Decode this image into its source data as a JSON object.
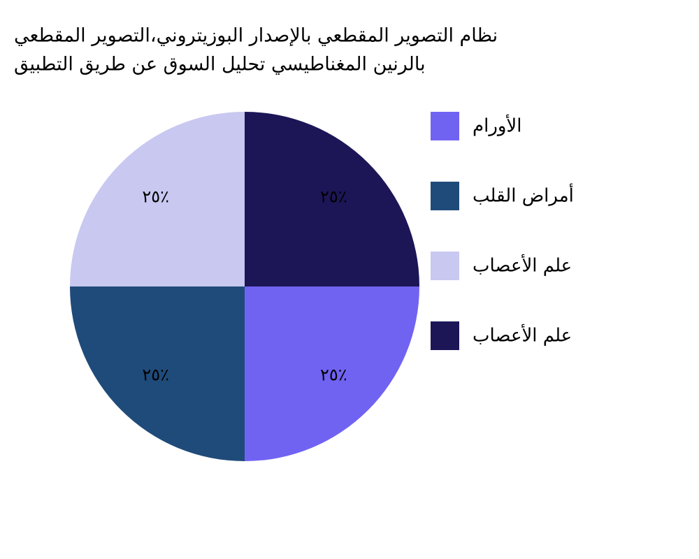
{
  "chart_data": {
    "type": "pie",
    "title_lines": [
      "نظام التصوير المقطعي بالإصدار البوزيتروني،التصوير المقطعي",
      "بالرنين المغناطيسي تحليل السوق عن طريق التطبيق"
    ],
    "categories": [
      "الأورام",
      "أمراض القلب",
      "علم الأعصاب",
      "علم الأعصاب"
    ],
    "values": [
      25,
      25,
      25,
      25
    ],
    "value_labels": [
      "٢٥٪",
      "٢٥٪",
      "٢٥٪",
      "٢٥٪"
    ],
    "colors": [
      "#7163f2",
      "#1f4b7a",
      "#c8c8f0",
      "#1c1657"
    ],
    "legend": "right"
  }
}
